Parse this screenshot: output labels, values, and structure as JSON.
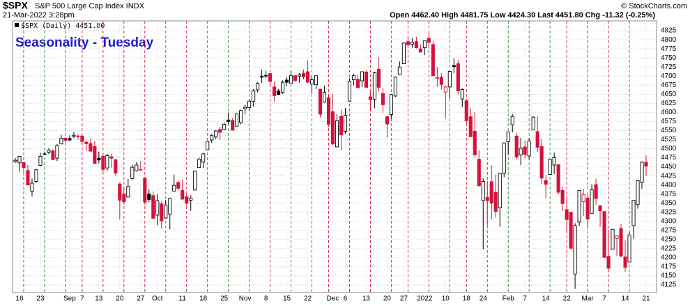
{
  "chart_data": {
    "type": "candlestick",
    "symbol": "$SPX",
    "name": "S&P 500 Large Cap Index INDX",
    "datetime": "21-Mar-2022 3:28pm",
    "quote": "Open 4462.40 High 4481.75 Low 4424.30 Last 4451.80 Chg -11.32 (-0.25%)",
    "watermark": "© StockCharts.com",
    "legend": "$SPX (Daily) 4451.80",
    "title": "Seasonality - Tuesday",
    "categories": [
      null,
      "16",
      null,
      null,
      null,
      null,
      "23",
      null,
      null,
      null,
      null,
      null,
      null,
      "Sep",
      null,
      null,
      "7",
      null,
      null,
      null,
      "13",
      null,
      null,
      null,
      null,
      "20",
      null,
      null,
      null,
      null,
      "27",
      null,
      null,
      null,
      "Oct",
      null,
      null,
      null,
      null,
      null,
      "11",
      null,
      null,
      null,
      null,
      "18",
      null,
      null,
      null,
      null,
      "25",
      null,
      null,
      null,
      null,
      "Nov",
      null,
      null,
      null,
      null,
      "8",
      null,
      null,
      null,
      null,
      "15",
      null,
      null,
      null,
      null,
      "22",
      null,
      null,
      null,
      null,
      null,
      "Dec",
      null,
      null,
      "6",
      null,
      null,
      null,
      null,
      "13",
      null,
      null,
      null,
      null,
      "20",
      null,
      null,
      null,
      "27",
      null,
      null,
      null,
      null,
      "2022",
      null,
      null,
      null,
      null,
      "10",
      null,
      null,
      null,
      null,
      "18",
      null,
      null,
      null,
      "24",
      null,
      null,
      null,
      null,
      null,
      "Feb",
      null,
      null,
      null,
      "7",
      null,
      null,
      null,
      null,
      "14",
      null,
      null,
      null,
      null,
      "22",
      null,
      null,
      null,
      null,
      "Mar",
      null,
      null,
      null,
      "7",
      null,
      null,
      null,
      null,
      "14",
      null,
      null,
      null,
      null,
      "21"
    ],
    "open": [
      4464,
      4461,
      4462,
      4440,
      4383,
      4410,
      4454,
      4484,
      4490,
      4494,
      4474,
      4513,
      4529,
      4528,
      4534,
      4533,
      4535,
      4518,
      4514,
      4506,
      4474,
      4479,
      4447,
      4478,
      4470,
      4403,
      4375,
      4367,
      4418,
      4439,
      4443,
      4419,
      4375,
      4371,
      4317,
      4348,
      4309,
      4320,
      4383,
      4407,
      4385,
      4368,
      4358,
      4386,
      4448,
      4463,
      4497,
      4524,
      4532,
      4553,
      4553,
      4579,
      4578,
      4562,
      4572,
      4610,
      4613,
      4630,
      4662,
      4700,
      4702,
      4707,
      4670,
      4659,
      4655,
      4689,
      4680,
      4701,
      4700,
      4708,
      4712,
      4678,
      4676,
      4664,
      4628,
      4640,
      4602,
      4505,
      4589,
      4548,
      4631,
      4690,
      4691,
      4687,
      4711,
      4643,
      4636,
      4719,
      4652,
      4588,
      4594,
      4645,
      4704,
      4734,
      4795,
      4788,
      4795,
      4775,
      4778,
      4804,
      4787,
      4693,
      4697,
      4656,
      4670,
      4729,
      4734,
      4637,
      4632,
      4588,
      4548,
      4471,
      4357,
      4366,
      4409,
      4380,
      4337,
      4432,
      4519,
      4566,
      4535,
      4483,
      4505,
      4480,
      4553,
      4547,
      4506,
      4412,
      4429,
      4455,
      4456,
      4385,
      4332,
      4325,
      4155,
      4298,
      4354,
      4364,
      4322,
      4401,
      4343,
      4327,
      4203,
      4223,
      4253,
      4280,
      4202,
      4188,
      4288,
      4346,
      4407,
      4462.4
    ],
    "high": [
      4474,
      4480,
      4463,
      4455,
      4418,
      4444,
      4489,
      4492,
      4501,
      4498,
      4513,
      4538,
      4532,
      4537,
      4546,
      4540,
      4536,
      4521,
      4529,
      4521,
      4492,
      4485,
      4486,
      4486,
      4471,
      4406,
      4394,
      4417,
      4456,
      4463,
      4465,
      4419,
      4388,
      4382,
      4375,
      4356,
      4359,
      4365,
      4429,
      4412,
      4415,
      4374,
      4372,
      4439,
      4476,
      4488,
      4520,
      4540,
      4551,
      4560,
      4572,
      4599,
      4584,
      4597,
      4608,
      4621,
      4635,
      4664,
      4683,
      4718,
      4714,
      4708,
      4685,
      4664,
      4688,
      4697,
      4715,
      4702,
      4708,
      4718,
      4743,
      4699,
      4702,
      4664,
      4673,
      4646,
      4652,
      4595,
      4608,
      4612,
      4694,
      4706,
      4705,
      4713,
      4715,
      4659,
      4712,
      4752,
      4667,
      4591,
      4651,
      4698,
      4740,
      4791,
      4808,
      4805,
      4808,
      4787,
      4797,
      4819,
      4797,
      4725,
      4708,
      4673,
      4714,
      4749,
      4744,
      4666,
      4632,
      4612,
      4602,
      4495,
      4418,
      4412,
      4454,
      4429,
      4432,
      4517,
      4547,
      4595,
      4543,
      4530,
      4522,
      4530,
      4589,
      4589,
      4527,
      4426,
      4472,
      4489,
      4456,
      4395,
      4363,
      4326,
      4295,
      4385,
      4389,
      4375,
      4402,
      4417,
      4343,
      4327,
      4277,
      4279,
      4261,
      4292,
      4247,
      4271,
      4358,
      4412,
      4465,
      4481.75
    ],
    "low": [
      4461,
      4437,
      4427,
      4400,
      4368,
      4406,
      4452,
      4482,
      4485,
      4468,
      4466,
      4513,
      4515,
      4521,
      4529,
      4525,
      4513,
      4494,
      4493,
      4458,
      4459,
      4435,
      4439,
      4448,
      4427,
      4305,
      4347,
      4367,
      4413,
      4437,
      4440,
      4346,
      4352,
      4307,
      4289,
      4279,
      4307,
      4278,
      4383,
      4386,
      4360,
      4343,
      4329,
      4386,
      4448,
      4447,
      4496,
      4516,
      4527,
      4524,
      4551,
      4568,
      4551,
      4562,
      4567,
      4595,
      4604,
      4616,
      4655,
      4681,
      4694,
      4670,
      4630,
      4649,
      4651,
      4672,
      4680,
      4684,
      4682,
      4691,
      4681,
      4652,
      4664,
      4586,
      4628,
      4560,
      4510,
      4504,
      4495,
      4541,
      4631,
      4674,
      4667,
      4670,
      4667,
      4606,
      4611,
      4657,
      4598,
      4531,
      4583,
      4643,
      4703,
      4734,
      4780,
      4778,
      4776,
      4765,
      4758,
      4775,
      4700,
      4671,
      4663,
      4583,
      4638,
      4708,
      4650,
      4614,
      4568,
      4532,
      4477,
      4395,
      4223,
      4288,
      4305,
      4310,
      4285,
      4421,
      4484,
      4545,
      4470,
      4455,
      4473,
      4470,
      4553,
      4491,
      4403,
      4364,
      4429,
      4430,
      4374,
      4328,
      4268,
      4222,
      4114,
      4287,
      4315,
      4279,
      4322,
      4345,
      4285,
      4199,
      4161,
      4223,
      4205,
      4202,
      4161,
      4187,
      4252,
      4335,
      4390,
      4424.3
    ],
    "close": [
      4468,
      4479,
      4448,
      4400,
      4405,
      4442,
      4479,
      4486,
      4496,
      4470,
      4509,
      4529,
      4523,
      4524,
      4537,
      4535,
      4520,
      4514,
      4493,
      4459,
      4469,
      4443,
      4481,
      4474,
      4433,
      4358,
      4354,
      4396,
      4449,
      4455,
      4443,
      4353,
      4360,
      4308,
      4357,
      4301,
      4345,
      4363,
      4399,
      4391,
      4361,
      4350,
      4364,
      4438,
      4471,
      4486,
      4520,
      4537,
      4549,
      4545,
      4567,
      4575,
      4551,
      4596,
      4605,
      4614,
      4631,
      4660,
      4680,
      4697,
      4702,
      4685,
      4646,
      4649,
      4683,
      4683,
      4701,
      4688,
      4704,
      4698,
      4683,
      4690,
      4701,
      4595,
      4655,
      4567,
      4513,
      4577,
      4538,
      4592,
      4686,
      4701,
      4668,
      4712,
      4669,
      4635,
      4709,
      4669,
      4621,
      4568,
      4649,
      4697,
      4725,
      4791,
      4786,
      4793,
      4778,
      4766,
      4797,
      4793,
      4701,
      4696,
      4677,
      4670,
      4713,
      4726,
      4659,
      4663,
      4577,
      4533,
      4483,
      4398,
      4410,
      4357,
      4350,
      4327,
      4432,
      4516,
      4546,
      4589,
      4477,
      4501,
      4484,
      4521,
      4587,
      4504,
      4419,
      4402,
      4471,
      4475,
      4380,
      4349,
      4305,
      4226,
      4288,
      4385,
      4374,
      4306,
      4387,
      4363,
      4329,
      4201,
      4171,
      4278,
      4260,
      4204,
      4173,
      4262,
      4358,
      4412,
      4463,
      4451.8
    ],
    "marker_days": [
      2,
      7,
      12,
      16,
      21,
      26,
      31,
      36,
      41,
      46,
      51,
      56,
      61,
      66,
      71,
      75,
      80,
      85,
      90,
      94,
      99,
      104,
      108,
      113,
      118,
      123,
      128,
      132,
      137,
      142,
      147
    ],
    "up_color": "#000000",
    "down_color": "#d5123a",
    "marker_up_color": "#1a8a2a",
    "marker_down_color": "#d5123a",
    "ylim": [
      4104,
      4852
    ],
    "yticks": [
      4125,
      4150,
      4175,
      4200,
      4225,
      4250,
      4275,
      4300,
      4325,
      4350,
      4375,
      4400,
      4425,
      4450,
      4475,
      4500,
      4525,
      4550,
      4575,
      4600,
      4625,
      4650,
      4675,
      4700,
      4725,
      4750,
      4775,
      4800,
      4825
    ],
    "grid": true
  }
}
